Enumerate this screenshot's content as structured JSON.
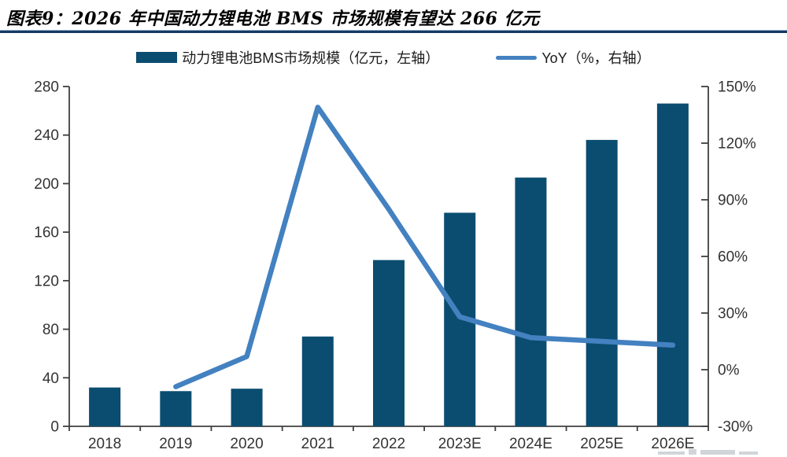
{
  "figure": {
    "title": "图表9：2026 年中国动力锂电池 BMS 市场规模有望达 266 亿元"
  },
  "legend": {
    "items": [
      {
        "label": "动力锂电池BMS市场规模（亿元，左轴）",
        "swatch": "bar",
        "color": "#0B4D70"
      },
      {
        "label": "YoY（%，右轴）",
        "swatch": "line",
        "color": "#4381C0"
      }
    ]
  },
  "chart_data": {
    "type": "bar",
    "secondary_type": "line",
    "title": "2026 年中国动力锂电池 BMS 市场规模有望达 266 亿元",
    "categories": [
      "2018",
      "2019",
      "2020",
      "2021",
      "2022",
      "2023E",
      "2024E",
      "2025E",
      "2026E"
    ],
    "series": [
      {
        "name": "动力锂电池BMS市场规模（亿元，左轴）",
        "type": "bar",
        "axis": "left",
        "unit": "亿元",
        "color": "#0B4D70",
        "values": [
          32,
          29,
          31,
          74,
          137,
          176,
          205,
          236,
          266
        ]
      },
      {
        "name": "YoY（%，右轴）",
        "type": "line",
        "axis": "right",
        "unit": "%",
        "color": "#4381C0",
        "values": [
          null,
          -9,
          7,
          139,
          85,
          28,
          17,
          15,
          13
        ]
      }
    ],
    "left_axis": {
      "min": 0,
      "max": 280,
      "ticks": [
        0,
        40,
        80,
        120,
        160,
        200,
        240,
        280
      ]
    },
    "right_axis": {
      "min": -30,
      "max": 150,
      "ticks": [
        -30,
        0,
        30,
        60,
        90,
        120,
        150
      ],
      "tick_labels": [
        "-30%",
        "0%",
        "30%",
        "60%",
        "90%",
        "120%",
        "150%"
      ]
    },
    "grid": false,
    "legend_position": "top-center",
    "axis_color": "#3f3f3f",
    "label_color": "#333333"
  }
}
